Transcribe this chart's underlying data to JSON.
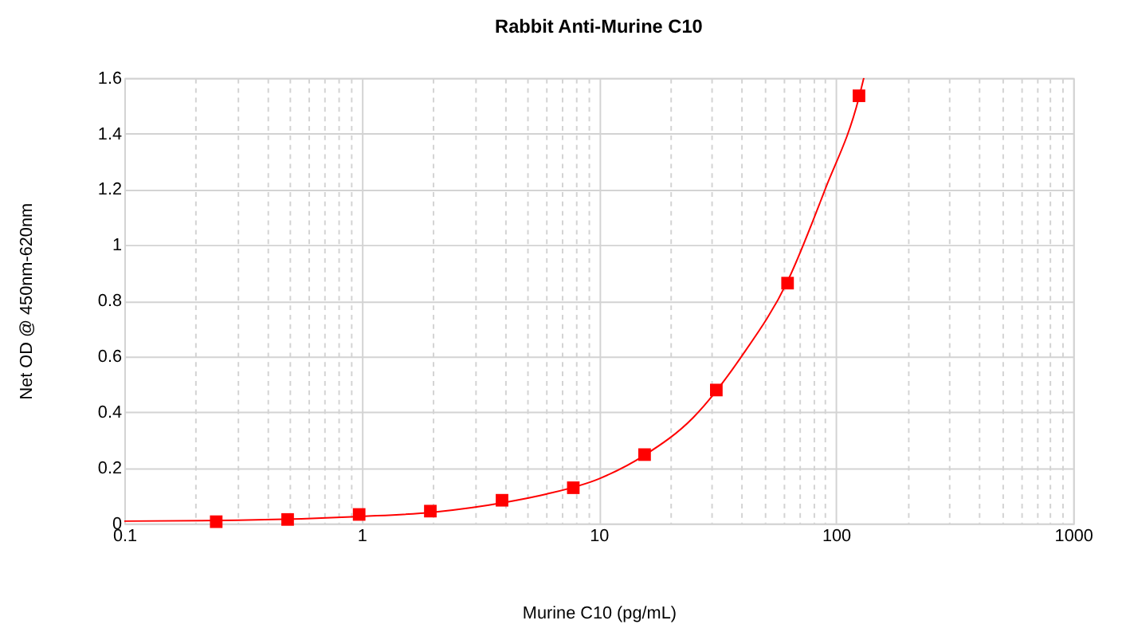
{
  "chart_data": {
    "type": "scatter",
    "title": "Rabbit Anti-Murine C10",
    "xlabel": "Murine C10 (pg/mL)",
    "ylabel": "Net OD @ 450nm-620nm",
    "log": "x",
    "grid": true,
    "xlim": [
      0.1,
      1000
    ],
    "ylim": [
      0,
      1.6
    ],
    "xticks": [
      0.1,
      {
        "value": 0.2,
        "label": null
      },
      {
        "value": 0.3,
        "label": null
      },
      {
        "value": 0.4,
        "label": null
      },
      {
        "value": 0.5,
        "label": null
      },
      {
        "value": 0.6,
        "label": null
      },
      {
        "value": 0.7,
        "label": null
      },
      {
        "value": 0.8,
        "label": null
      },
      {
        "value": 0.9,
        "label": null
      },
      1,
      {
        "value": 2,
        "label": null
      },
      {
        "value": 3,
        "label": null
      },
      {
        "value": 4,
        "label": null
      },
      {
        "value": 5,
        "label": null
      },
      {
        "value": 6,
        "label": null
      },
      {
        "value": 7,
        "label": null
      },
      {
        "value": 8,
        "label": null
      },
      {
        "value": 9,
        "label": null
      },
      10,
      {
        "value": 20,
        "label": null
      },
      {
        "value": 30,
        "label": null
      },
      {
        "value": 40,
        "label": null
      },
      {
        "value": 50,
        "label": null
      },
      {
        "value": 60,
        "label": null
      },
      {
        "value": 70,
        "label": null
      },
      {
        "value": 80,
        "label": null
      },
      {
        "value": 90,
        "label": null
      },
      100,
      {
        "value": 200,
        "label": null
      },
      {
        "value": 300,
        "label": null
      },
      {
        "value": 400,
        "label": null
      },
      {
        "value": 500,
        "label": null
      },
      {
        "value": 600,
        "label": null
      },
      {
        "value": 700,
        "label": null
      },
      {
        "value": 800,
        "label": null
      },
      {
        "value": 900,
        "label": null
      },
      1000
    ],
    "yticks": [
      0,
      0.2,
      0.4,
      0.6,
      0.8,
      1,
      1.2,
      1.4,
      1.6
    ],
    "series": [
      {
        "color": "#ff0000",
        "marker": "square",
        "x": [
          0.244,
          0.488,
          0.977,
          1.95,
          3.91,
          7.81,
          15.6,
          31.3,
          62.5,
          125
        ],
        "values": [
          0.006,
          0.014,
          0.032,
          0.044,
          0.083,
          0.128,
          0.247,
          0.479,
          0.863,
          1.536
        ]
      },
      {
        "type": "line",
        "color": "#ff0000",
        "marker": "none",
        "line_style": "solid",
        "x": [
          0.1,
          0.3,
          1,
          2,
          4,
          6,
          10,
          15.6,
          25,
          40,
          62.5,
          90,
          125,
          131
        ],
        "values": [
          0.008,
          0.011,
          0.025,
          0.04,
          0.075,
          0.105,
          0.16,
          0.245,
          0.38,
          0.6,
          0.87,
          1.2,
          1.53,
          1.6
        ]
      }
    ]
  }
}
